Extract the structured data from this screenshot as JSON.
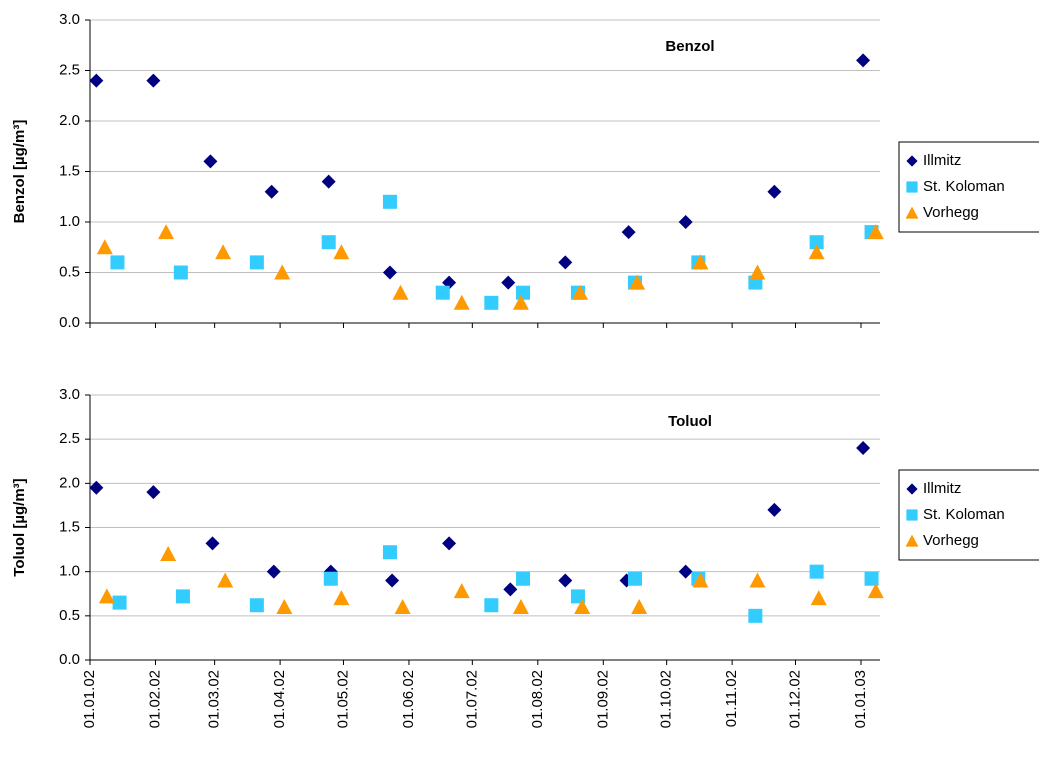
{
  "chart_data": [
    {
      "type": "scatter",
      "title": "Benzol",
      "y_label": "Benzol [µg/m³]",
      "legend": "right",
      "grid": true,
      "xlim": [
        "01.01.02",
        "10.01.03"
      ],
      "xticks": [
        "01.01.02",
        "01.02.02",
        "01.03.02",
        "01.04.02",
        "01.05.02",
        "01.06.02",
        "01.07.02",
        "01.08.02",
        "01.09.02",
        "01.10.02",
        "01.11.02",
        "01.12.02",
        "01.01.03"
      ],
      "ylim": [
        0,
        3
      ],
      "yticks": [
        {
          "value": 0,
          "label": "0.0"
        },
        {
          "value": 0.5,
          "label": "0.5"
        },
        {
          "value": 1,
          "label": "1.0"
        },
        {
          "value": 1.5,
          "label": "1.5"
        },
        {
          "value": 2,
          "label": "2.0"
        },
        {
          "value": 2.5,
          "label": "2.5"
        },
        {
          "value": 3,
          "label": "3.0"
        }
      ],
      "series": [
        {
          "name": "Illmitz",
          "color": "#000080",
          "marker": "diamond",
          "x": [
            "04.01.02",
            "31.01.02",
            "27.02.02",
            "28.03.02",
            "24.04.02",
            "23.05.02",
            "20.06.02",
            "18.07.02",
            "14.08.02",
            "13.09.02",
            "10.10.02",
            "21.11.02",
            "02.01.03"
          ],
          "values": [
            2.4,
            2.4,
            1.6,
            1.3,
            1.4,
            0.5,
            0.4,
            0.4,
            0.6,
            0.9,
            1.0,
            1.3,
            2.6
          ]
        },
        {
          "name": "St. Koloman",
          "color": "#33CCFF",
          "marker": "square",
          "x": [
            "14.01.02",
            "13.02.02",
            "21.03.02",
            "24.04.02",
            "23.05.02",
            "17.06.02",
            "10.07.02",
            "25.07.02",
            "20.08.02",
            "16.09.02",
            "16.10.02",
            "12.11.02",
            "11.12.02",
            "06.01.03"
          ],
          "values": [
            0.6,
            0.5,
            0.6,
            0.8,
            1.2,
            0.3,
            0.2,
            0.3,
            0.3,
            0.4,
            0.6,
            0.4,
            0.8,
            0.9
          ]
        },
        {
          "name": "Vorhegg",
          "color": "#FF9900",
          "marker": "triangle",
          "x": [
            "08.01.02",
            "06.02.02",
            "05.03.02",
            "02.04.02",
            "30.04.02",
            "28.05.02",
            "26.06.02",
            "24.07.02",
            "21.08.02",
            "17.09.02",
            "17.10.02",
            "13.11.02",
            "11.12.02",
            "08.01.03"
          ],
          "values": [
            0.75,
            0.9,
            0.7,
            0.5,
            0.7,
            0.3,
            0.2,
            0.2,
            0.3,
            0.4,
            0.6,
            0.5,
            0.7,
            0.9
          ]
        }
      ]
    },
    {
      "type": "scatter",
      "title": "Toluol",
      "y_label": "Toluol [µg/m³]",
      "legend": "right",
      "grid": true,
      "xlim": [
        "01.01.02",
        "10.01.03"
      ],
      "xticks": [
        "01.01.02",
        "01.02.02",
        "01.03.02",
        "01.04.02",
        "01.05.02",
        "01.06.02",
        "01.07.02",
        "01.08.02",
        "01.09.02",
        "01.10.02",
        "01.11.02",
        "01.12.02",
        "01.01.03"
      ],
      "ylim": [
        0,
        3
      ],
      "yticks": [
        {
          "value": 0,
          "label": "0.0"
        },
        {
          "value": 0.5,
          "label": "0.5"
        },
        {
          "value": 1,
          "label": "1.0"
        },
        {
          "value": 1.5,
          "label": "1.5"
        },
        {
          "value": 2,
          "label": "2.0"
        },
        {
          "value": 2.5,
          "label": "2.5"
        },
        {
          "value": 3,
          "label": "3.0"
        }
      ],
      "series": [
        {
          "name": "Illmitz",
          "color": "#000080",
          "marker": "diamond",
          "x": [
            "04.01.02",
            "31.01.02",
            "28.02.02",
            "29.03.02",
            "25.04.02",
            "24.05.02",
            "20.06.02",
            "19.07.02",
            "14.08.02",
            "12.09.02",
            "10.10.02",
            "21.11.02",
            "02.01.03"
          ],
          "values": [
            1.95,
            1.9,
            1.32,
            1.0,
            1.0,
            0.9,
            1.32,
            0.8,
            0.9,
            0.9,
            1.0,
            1.7,
            2.4
          ]
        },
        {
          "name": "St. Koloman",
          "color": "#33CCFF",
          "marker": "square",
          "x": [
            "15.01.02",
            "14.02.02",
            "21.03.02",
            "25.04.02",
            "23.05.02",
            "10.07.02",
            "25.07.02",
            "20.08.02",
            "16.09.02",
            "16.10.02",
            "12.11.02",
            "11.12.02",
            "06.01.03"
          ],
          "values": [
            0.65,
            0.72,
            0.62,
            0.92,
            1.22,
            0.62,
            0.92,
            0.72,
            0.92,
            0.92,
            0.5,
            1.0,
            0.92
          ]
        },
        {
          "name": "Vorhegg",
          "color": "#FF9900",
          "marker": "triangle",
          "x": [
            "09.01.02",
            "07.02.02",
            "06.03.02",
            "03.04.02",
            "30.04.02",
            "29.05.02",
            "26.06.02",
            "24.07.02",
            "22.08.02",
            "18.09.02",
            "17.10.02",
            "13.11.02",
            "12.12.02",
            "08.01.03"
          ],
          "values": [
            0.72,
            1.2,
            0.9,
            0.6,
            0.7,
            0.6,
            0.78,
            0.6,
            0.6,
            0.6,
            0.9,
            0.9,
            0.7,
            0.78
          ]
        }
      ]
    }
  ]
}
